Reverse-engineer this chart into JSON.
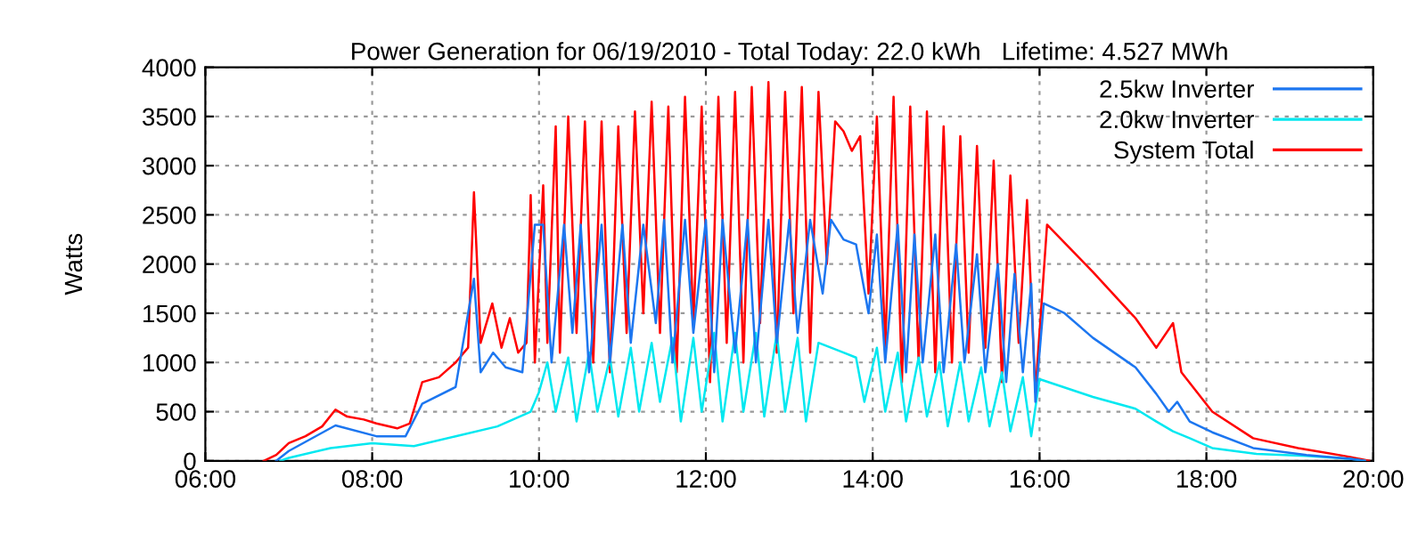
{
  "chart_data": {
    "type": "line",
    "title": "Power Generation for 06/19/2010 - Total Today: 22.0 kWh   Lifetime: 4.527 MWh",
    "ylabel": "Watts",
    "xlim": [
      6,
      20
    ],
    "ylim": [
      0,
      4000
    ],
    "xticks": [
      {
        "value": 6,
        "label": "06:00"
      },
      {
        "value": 8,
        "label": "08:00"
      },
      {
        "value": 10,
        "label": "10:00"
      },
      {
        "value": 12,
        "label": "12:00"
      },
      {
        "value": 14,
        "label": "14:00"
      },
      {
        "value": 16,
        "label": "16:00"
      },
      {
        "value": 18,
        "label": "18:00"
      },
      {
        "value": 20,
        "label": "20:00"
      }
    ],
    "yticks": [
      0,
      500,
      1000,
      1500,
      2000,
      2500,
      3000,
      3500,
      4000
    ],
    "grid": true,
    "legend": "top right",
    "line_style": "solid",
    "series": [
      {
        "name": "2.5kw Inverter",
        "color": "#1c76f0",
        "x": [
          6.85,
          7.0,
          7.56,
          8.05,
          8.4,
          8.6,
          9.0,
          9.22,
          9.3,
          9.45,
          9.6,
          9.8,
          9.95,
          10.05,
          10.15,
          10.3,
          10.4,
          10.5,
          10.6,
          10.75,
          10.85,
          11.0,
          11.1,
          11.25,
          11.4,
          11.5,
          11.6,
          11.75,
          11.85,
          12.0,
          12.1,
          12.2,
          12.35,
          12.5,
          12.6,
          12.75,
          12.85,
          13.0,
          13.1,
          13.25,
          13.4,
          13.5,
          13.65,
          13.8,
          13.95,
          14.05,
          14.15,
          14.3,
          14.4,
          14.5,
          14.6,
          14.75,
          14.85,
          15.0,
          15.1,
          15.25,
          15.35,
          15.5,
          15.6,
          15.7,
          15.8,
          15.9,
          15.95,
          16.05,
          16.3,
          16.64,
          17.15,
          17.4,
          17.55,
          17.65,
          17.8,
          18.07,
          18.56,
          19.2,
          19.72,
          19.9
        ],
        "values": [
          0,
          100,
          360,
          250,
          250,
          580,
          750,
          1850,
          900,
          1100,
          950,
          900,
          2400,
          2400,
          1000,
          2400,
          1300,
          2400,
          900,
          2400,
          1000,
          2400,
          1200,
          2400,
          1400,
          2450,
          1000,
          2450,
          1300,
          2450,
          900,
          2450,
          1100,
          2450,
          1000,
          2450,
          1200,
          2450,
          1300,
          2450,
          1700,
          2450,
          2250,
          2200,
          1500,
          2300,
          1000,
          2400,
          900,
          2300,
          1000,
          2300,
          900,
          2200,
          1000,
          2100,
          900,
          2000,
          800,
          1900,
          900,
          1800,
          600,
          1600,
          1500,
          1250,
          950,
          680,
          500,
          600,
          400,
          290,
          130,
          60,
          20,
          0
        ]
      },
      {
        "name": "2.0kw Inverter",
        "color": "#00e8f0",
        "x": [
          6.9,
          7.0,
          7.5,
          8.0,
          8.5,
          9.0,
          9.5,
          9.9,
          10.0,
          10.1,
          10.2,
          10.35,
          10.45,
          10.6,
          10.7,
          10.85,
          10.95,
          11.1,
          11.2,
          11.35,
          11.45,
          11.6,
          11.7,
          11.85,
          11.95,
          12.1,
          12.2,
          12.35,
          12.45,
          12.6,
          12.7,
          12.85,
          12.95,
          13.1,
          13.2,
          13.35,
          13.5,
          13.65,
          13.8,
          13.9,
          14.05,
          14.15,
          14.3,
          14.4,
          14.55,
          14.65,
          14.8,
          14.9,
          15.05,
          15.15,
          15.3,
          15.4,
          15.55,
          15.65,
          15.8,
          15.9,
          16.0,
          16.64,
          17.15,
          17.4,
          17.6,
          17.8,
          18.07,
          18.6,
          19.2,
          19.72,
          19.9
        ],
        "values": [
          0,
          30,
          130,
          180,
          150,
          250,
          350,
          500,
          700,
          1000,
          500,
          1050,
          400,
          1100,
          500,
          1050,
          450,
          1150,
          500,
          1200,
          600,
          1250,
          400,
          1250,
          500,
          1300,
          400,
          1300,
          500,
          1300,
          450,
          1300,
          500,
          1250,
          400,
          1200,
          1150,
          1100,
          1050,
          600,
          1150,
          500,
          1100,
          400,
          1050,
          450,
          1000,
          350,
          1000,
          400,
          950,
          350,
          900,
          300,
          850,
          250,
          830,
          650,
          530,
          400,
          300,
          230,
          130,
          70,
          50,
          20,
          0
        ]
      },
      {
        "name": "System Total",
        "color": "#ff0000",
        "x": [
          6.7,
          6.85,
          7.0,
          7.2,
          7.4,
          7.56,
          7.7,
          7.9,
          8.05,
          8.3,
          8.45,
          8.6,
          8.8,
          9.0,
          9.15,
          9.22,
          9.3,
          9.44,
          9.55,
          9.65,
          9.75,
          9.85,
          9.9,
          9.95,
          10.05,
          10.1,
          10.2,
          10.25,
          10.35,
          10.45,
          10.55,
          10.65,
          10.75,
          10.85,
          10.95,
          11.05,
          11.15,
          11.25,
          11.35,
          11.45,
          11.55,
          11.65,
          11.75,
          11.85,
          11.95,
          12.05,
          12.15,
          12.25,
          12.35,
          12.45,
          12.55,
          12.65,
          12.75,
          12.85,
          12.95,
          13.05,
          13.15,
          13.25,
          13.35,
          13.45,
          13.55,
          13.65,
          13.75,
          13.85,
          13.95,
          14.05,
          14.15,
          14.25,
          14.35,
          14.45,
          14.55,
          14.65,
          14.75,
          14.85,
          14.95,
          15.05,
          15.15,
          15.25,
          15.35,
          15.45,
          15.55,
          15.65,
          15.75,
          15.85,
          15.95,
          16.09,
          16.64,
          17.15,
          17.4,
          17.6,
          17.7,
          18.07,
          18.56,
          19.1,
          19.72,
          19.95
        ],
        "values": [
          0,
          60,
          180,
          250,
          350,
          520,
          450,
          420,
          380,
          330,
          380,
          800,
          850,
          1000,
          1150,
          2730,
          1200,
          1600,
          1150,
          1450,
          1100,
          1200,
          2700,
          1000,
          2800,
          1200,
          3400,
          1100,
          3500,
          1300,
          3450,
          1000,
          3450,
          900,
          3400,
          1300,
          3550,
          1500,
          3650,
          1300,
          3600,
          900,
          3700,
          1400,
          3600,
          800,
          3700,
          1200,
          3750,
          1000,
          3800,
          1400,
          3850,
          1100,
          3750,
          1500,
          3800,
          1100,
          3750,
          2000,
          3450,
          3350,
          3150,
          3300,
          1700,
          3500,
          1150,
          3700,
          800,
          3600,
          1000,
          3550,
          900,
          3400,
          1000,
          3300,
          1100,
          3200,
          1150,
          3050,
          800,
          2900,
          1200,
          2650,
          700,
          2400,
          1920,
          1450,
          1150,
          1400,
          900,
          500,
          230,
          130,
          40,
          0
        ]
      }
    ]
  }
}
